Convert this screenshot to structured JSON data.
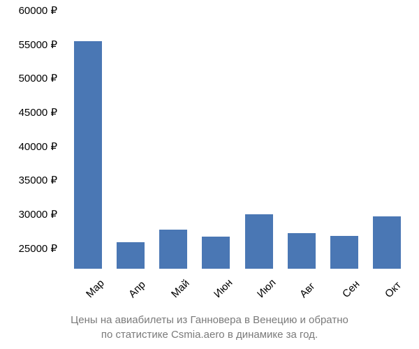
{
  "chart": {
    "type": "bar",
    "categories": [
      "Мар",
      "Апр",
      "Май",
      "Июн",
      "Июл",
      "Авг",
      "Сен",
      "Окт"
    ],
    "values": [
      55500,
      25900,
      27800,
      26700,
      30000,
      27200,
      26800,
      29700
    ],
    "bar_color": "#4a77b4",
    "ylim": [
      22000,
      60000
    ],
    "yticks": [
      25000,
      30000,
      35000,
      40000,
      45000,
      50000,
      55000,
      60000
    ],
    "ytick_labels": [
      "25000 ₽",
      "30000 ₽",
      "35000 ₽",
      "40000 ₽",
      "45000 ₽",
      "50000 ₽",
      "55000 ₽",
      "60000 ₽"
    ],
    "currency": "₽",
    "label_fontsize": 15,
    "label_color": "#000000",
    "bar_width_ratio": 0.65,
    "background_color": "#ffffff",
    "x_tick_rotation": -45
  },
  "caption": {
    "line1": "Цены на авиабилеты из Ганновера в Венецию и обратно",
    "line2": "по статистике Csmia.aero в динамике за год.",
    "color": "#7a7a7a",
    "fontsize": 15
  }
}
